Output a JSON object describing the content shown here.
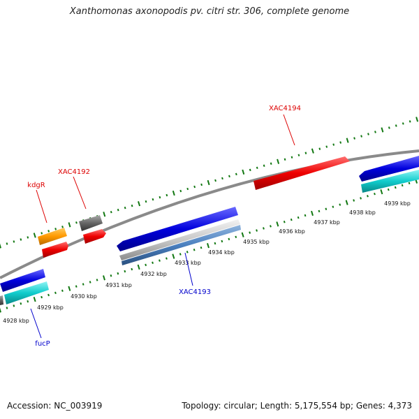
{
  "title": "Xanthomonas axonopodis pv. citri str. 306, complete genome",
  "footer": {
    "accession": "Accession: NC_003919",
    "summary": "Topology: circular; Length: 5,175,554 bp; Genes: 4,373"
  },
  "colors": {
    "forward_label": "#dd0000",
    "reverse_label": "#0000cc",
    "tick": "#117711",
    "backbone": "#8a8a8a"
  },
  "scale_labels": [
    "4928 kbp",
    "4929 kbp",
    "4930 kbp",
    "4931 kbp",
    "4932 kbp",
    "4933 kbp",
    "4934 kbp",
    "4935 kbp",
    "4936 kbp",
    "4937 kbp",
    "4938 kbp",
    "4939 kbp"
  ],
  "gene_labels": {
    "kdgR": "kdgR",
    "xac4192": "XAC4192",
    "xac4194": "XAC4194",
    "xac4193": "XAC4193",
    "fucP": "fucP"
  }
}
